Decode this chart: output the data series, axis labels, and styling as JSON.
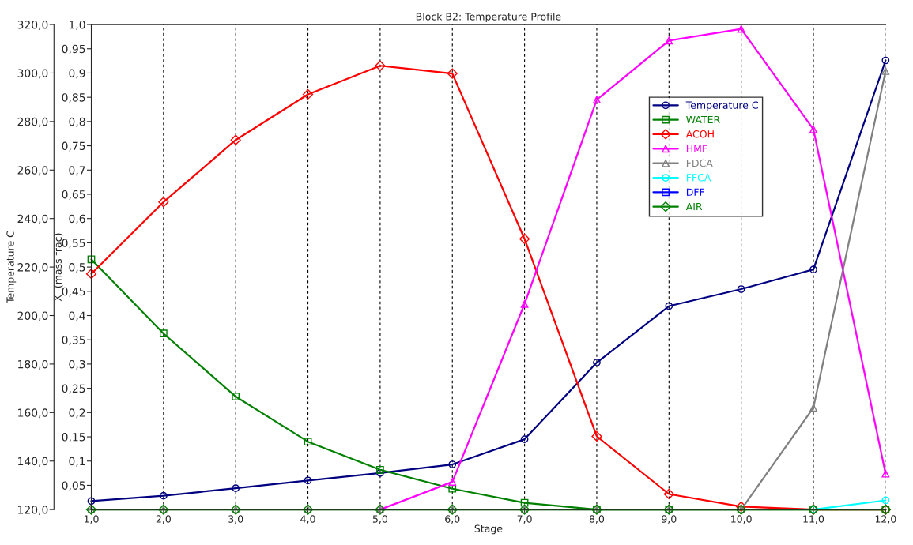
{
  "chart_data": {
    "type": "line",
    "title": "Block B2: Temperature Profile",
    "xlabel": "Stage",
    "ylabel": "Temperature C",
    "y2label": "X  (mass frac)",
    "x": [
      1,
      2,
      3,
      4,
      5,
      6,
      7,
      8,
      9,
      10,
      11,
      12
    ],
    "xlim": [
      1,
      12
    ],
    "xticks": [
      {
        "value": 1,
        "label": "1,0"
      },
      {
        "value": 2,
        "label": "2,0"
      },
      {
        "value": 3,
        "label": "3,0"
      },
      {
        "value": 4,
        "label": "4,0"
      },
      {
        "value": 5,
        "label": "5,0"
      },
      {
        "value": 6,
        "label": "6,0"
      },
      {
        "value": 7,
        "label": "7,0"
      },
      {
        "value": 8,
        "label": "8,0"
      },
      {
        "value": 9,
        "label": "9,0"
      },
      {
        "value": 10,
        "label": "10,0"
      },
      {
        "value": 11,
        "label": "11,0"
      },
      {
        "value": 12,
        "label": "12,0"
      }
    ],
    "ylim": [
      120,
      320
    ],
    "yticks": [
      {
        "value": 120,
        "label": "120,0"
      },
      {
        "value": 140,
        "label": "140,0"
      },
      {
        "value": 160,
        "label": "160,0"
      },
      {
        "value": 180,
        "label": "180,0"
      },
      {
        "value": 200,
        "label": "200,0"
      },
      {
        "value": 220,
        "label": "220,0"
      },
      {
        "value": 240,
        "label": "240,0"
      },
      {
        "value": 260,
        "label": "260,0"
      },
      {
        "value": 280,
        "label": "280,0"
      },
      {
        "value": 300,
        "label": "300,0"
      },
      {
        "value": 320,
        "label": "320,0"
      }
    ],
    "y2lim": [
      0,
      1
    ],
    "y2ticks": [
      {
        "value": 0,
        "label": null
      },
      {
        "value": 0.05,
        "label": "0,05"
      },
      {
        "value": 0.1,
        "label": "0,1"
      },
      {
        "value": 0.15,
        "label": "0,15"
      },
      {
        "value": 0.2,
        "label": "0,2"
      },
      {
        "value": 0.25,
        "label": "0,25"
      },
      {
        "value": 0.3,
        "label": "0,3"
      },
      {
        "value": 0.35,
        "label": "0,35"
      },
      {
        "value": 0.4,
        "label": "0,4"
      },
      {
        "value": 0.45,
        "label": "0,45"
      },
      {
        "value": 0.5,
        "label": "0,5"
      },
      {
        "value": 0.55,
        "label": "0,55"
      },
      {
        "value": 0.6,
        "label": "0,6"
      },
      {
        "value": 0.65,
        "label": "0,65"
      },
      {
        "value": 0.7,
        "label": "0,7"
      },
      {
        "value": 0.75,
        "label": "0,75"
      },
      {
        "value": 0.8,
        "label": "0,8"
      },
      {
        "value": 0.85,
        "label": "0,85"
      },
      {
        "value": 0.9,
        "label": "0,9"
      },
      {
        "value": 0.95,
        "label": "0,95"
      },
      {
        "value": 1,
        "label": "1,0"
      }
    ],
    "grid": "x",
    "legend": "top right",
    "line_style": "solid",
    "series": [
      {
        "name": "Temperature C",
        "color": "#000080",
        "marker": "circle",
        "values": [
          123.5,
          125.7,
          128.8,
          132,
          135.1,
          138.6,
          149,
          180.6,
          203.9,
          210.9,
          219,
          305.2
        ]
      },
      {
        "name": "WATER",
        "color": "#008000",
        "marker": "square",
        "axis": "y2",
        "values": [
          0.516,
          0.363,
          0.233,
          0.14,
          0.082,
          0.043,
          0.014,
          0,
          0,
          0,
          0,
          0
        ]
      },
      {
        "name": "ACOH",
        "color": "#ff0000",
        "marker": "diamond",
        "axis": "y2",
        "values": [
          0.486,
          0.634,
          0.762,
          0.856,
          0.915,
          0.899,
          0.558,
          0.151,
          0.032,
          0.006,
          0,
          0
        ]
      },
      {
        "name": "HMF",
        "color": "#ff00ff",
        "marker": "triangle",
        "axis": "y2",
        "values": [
          null,
          null,
          null,
          null,
          0,
          0.057,
          0.424,
          0.845,
          0.967,
          0.991,
          0.784,
          0.074
        ]
      },
      {
        "name": "FDCA",
        "color": "#808080",
        "marker": "triangle",
        "axis": "y2",
        "values": [
          0,
          0,
          0,
          0,
          0,
          0,
          0,
          0,
          0,
          0,
          0.21,
          0.904
        ]
      },
      {
        "name": "FFCA",
        "color": "#00ffff",
        "marker": "circle",
        "axis": "y2",
        "values": [
          null,
          null,
          null,
          null,
          null,
          null,
          null,
          null,
          null,
          null,
          0,
          0.019
        ]
      },
      {
        "name": "DFF",
        "color": "#0000ff",
        "marker": "square",
        "axis": "y2",
        "values": [
          null,
          null,
          null,
          null,
          null,
          null,
          null,
          null,
          null,
          null,
          null,
          null
        ]
      },
      {
        "name": "AIR",
        "color": "#008000",
        "marker": "diamond",
        "axis": "y2",
        "values": [
          0,
          0,
          0,
          0,
          0,
          0,
          0,
          0,
          0,
          0,
          0,
          0
        ]
      }
    ]
  }
}
